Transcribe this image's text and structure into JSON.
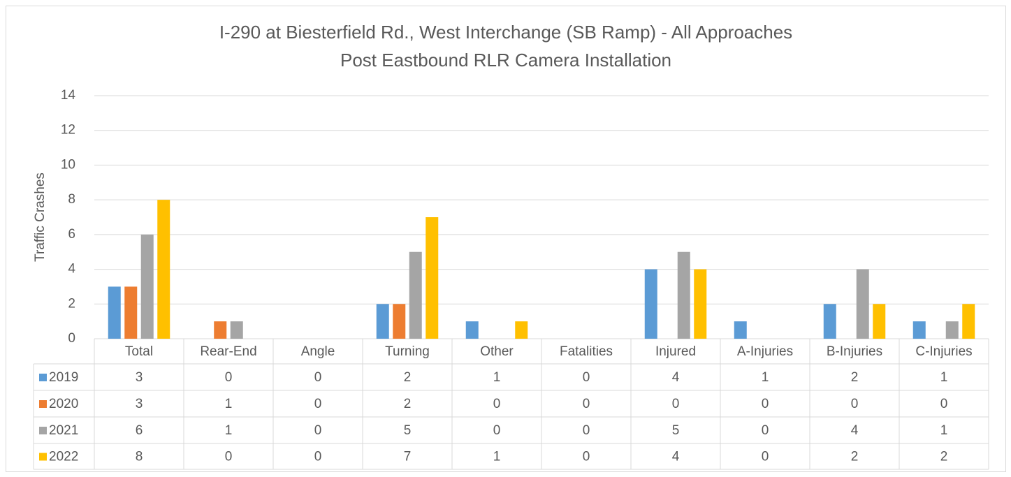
{
  "chart_data": {
    "type": "bar",
    "title": "I-290 at Biesterfield Rd., West Interchange (SB Ramp) - All Approaches",
    "subtitle": "Post Eastbound RLR Camera Installation",
    "y_label": "Traffic Crashes",
    "categories": [
      "Total",
      "Rear-End",
      "Angle",
      "Turning",
      "Other",
      "Fatalities",
      "Injured",
      "A-Injuries",
      "B-Injuries",
      "C-Injuries"
    ],
    "series": [
      {
        "name": "2019",
        "color": "#5b9bd5",
        "values": [
          3,
          0,
          0,
          2,
          1,
          0,
          4,
          1,
          2,
          1
        ]
      },
      {
        "name": "2020",
        "color": "#ed7d31",
        "values": [
          3,
          1,
          0,
          2,
          0,
          0,
          0,
          0,
          0,
          0
        ]
      },
      {
        "name": "2021",
        "color": "#a5a5a5",
        "values": [
          6,
          1,
          0,
          5,
          0,
          0,
          5,
          0,
          4,
          1
        ]
      },
      {
        "name": "2022",
        "color": "#ffc000",
        "values": [
          8,
          0,
          0,
          7,
          1,
          0,
          4,
          0,
          2,
          2
        ]
      }
    ],
    "ylim": [
      0,
      14
    ],
    "yticks": [
      0,
      2,
      4,
      6,
      8,
      10,
      12,
      14
    ],
    "grid": true
  }
}
